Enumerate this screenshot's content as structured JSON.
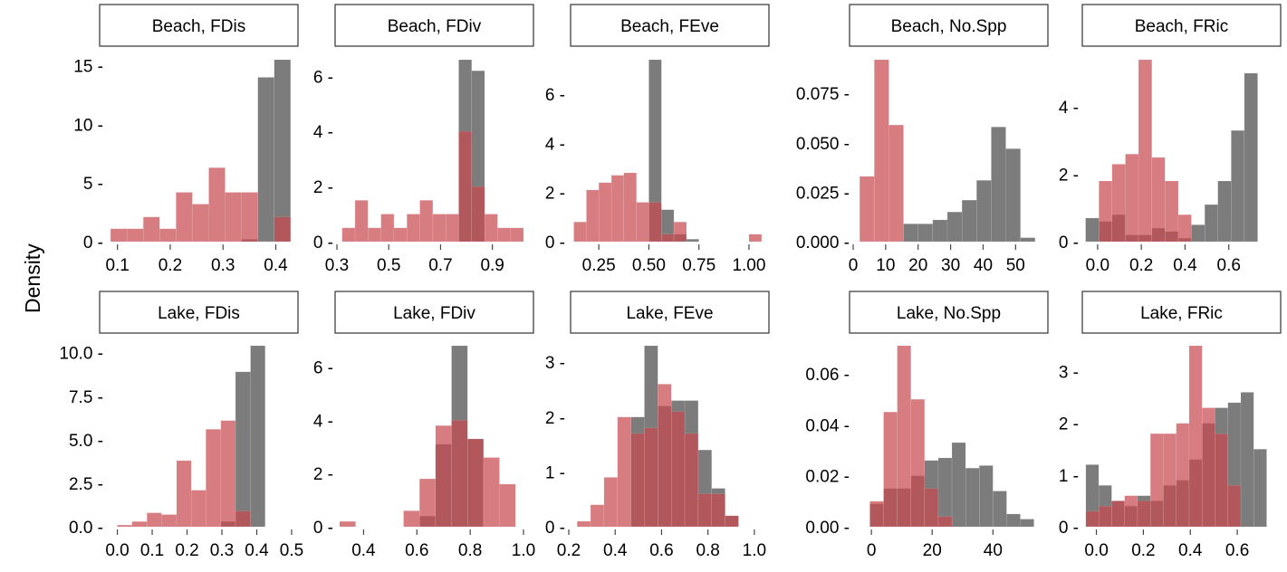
{
  "figure": {
    "ylabel": "Density",
    "colors": {
      "grey": "#6e6e6e",
      "red": "#c8494f",
      "overlap_note_only_visual": ""
    }
  },
  "chart_data": [
    {
      "type": "bar",
      "title": "Beach, FDis",
      "xlabel": "",
      "ylabel": "Density",
      "xlim": [
        0.08,
        0.43
      ],
      "ylim": [
        0,
        15.5
      ],
      "xticks": [
        0.1,
        0.2,
        0.3,
        0.4
      ],
      "xticklabels": [
        "0.1",
        "0.2",
        "0.3",
        "0.4"
      ],
      "yticks": [
        0,
        5,
        10,
        15
      ],
      "yticklabels": [
        "0 -",
        "5 -",
        "10 -",
        "15 -"
      ],
      "bin_edges": [
        0.087,
        0.118,
        0.149,
        0.18,
        0.211,
        0.242,
        0.273,
        0.304,
        0.335,
        0.366,
        0.397,
        0.428
      ],
      "series": [
        {
          "color": "#6e6e6e",
          "values": [
            0,
            0,
            0,
            0,
            0,
            0,
            0,
            0,
            0.2,
            14,
            15.5
          ]
        },
        {
          "color": "#c8494f",
          "values": [
            1.1,
            1.1,
            2.1,
            1.1,
            4.2,
            3.2,
            6.3,
            4.2,
            4.2,
            0,
            2.1
          ]
        }
      ]
    },
    {
      "type": "bar",
      "title": "Beach, FDiv",
      "xlabel": "",
      "ylabel": "Density",
      "xlim": [
        0.3,
        1.02
      ],
      "ylim": [
        0,
        6.6
      ],
      "xticks": [
        0.3,
        0.5,
        0.7,
        0.9
      ],
      "xticklabels": [
        "0.3",
        "0.5",
        "0.7",
        "0.9"
      ],
      "yticks": [
        0,
        2,
        4,
        6
      ],
      "yticklabels": [
        "0 -",
        "2 -",
        "4 -",
        "6 -"
      ],
      "bin_edges": [
        0.32,
        0.37,
        0.42,
        0.47,
        0.52,
        0.57,
        0.62,
        0.67,
        0.72,
        0.77,
        0.82,
        0.87,
        0.92,
        0.97,
        1.02
      ],
      "series": [
        {
          "color": "#6e6e6e",
          "values": [
            0,
            0,
            0,
            0,
            0,
            0,
            0,
            0,
            0,
            6.6,
            6.2,
            0,
            0,
            0
          ]
        },
        {
          "color": "#c8494f",
          "values": [
            0.5,
            1.5,
            0.5,
            1.0,
            0.5,
            1.0,
            1.5,
            1.0,
            1.0,
            4.0,
            2.0,
            1.0,
            0.5,
            0.5
          ]
        }
      ]
    },
    {
      "type": "bar",
      "title": "Beach, FEve",
      "xlabel": "",
      "ylabel": "Density",
      "xlim": [
        0.1,
        1.05
      ],
      "ylim": [
        0,
        7.4
      ],
      "xticks": [
        0.25,
        0.5,
        0.75,
        1.0
      ],
      "xticklabels": [
        "0.25",
        "0.50",
        "0.75",
        "1.00"
      ],
      "yticks": [
        0,
        2,
        4,
        6
      ],
      "yticklabels": [
        "0 -",
        "2 -",
        "4 -",
        "6 -"
      ],
      "bin_edges": [
        0.125,
        0.188,
        0.25,
        0.313,
        0.375,
        0.438,
        0.5,
        0.563,
        0.625,
        0.688,
        0.75,
        0.813,
        0.875,
        0.938,
        1.0,
        1.063
      ],
      "series": [
        {
          "color": "#6e6e6e",
          "values": [
            0,
            0,
            0,
            0,
            0,
            0,
            7.4,
            1.3,
            0.3,
            0.1,
            0,
            0,
            0,
            0,
            0
          ]
        },
        {
          "color": "#c8494f",
          "values": [
            0.8,
            2.1,
            2.4,
            2.7,
            2.8,
            1.6,
            1.6,
            0.3,
            0.8,
            0,
            0,
            0,
            0,
            0,
            0.3
          ]
        }
      ]
    },
    {
      "type": "bar",
      "title": "Beach, No.Spp",
      "xlabel": "",
      "ylabel": "Density",
      "xlim": [
        0,
        58
      ],
      "ylim": [
        0,
        0.092
      ],
      "xticks": [
        0,
        10,
        20,
        30,
        40,
        50
      ],
      "xticklabels": [
        "0",
        "10",
        "20",
        "30",
        "40",
        "50"
      ],
      "yticks": [
        0,
        0.025,
        0.05,
        0.075
      ],
      "yticklabels": [
        "0.000 -",
        "0.025 -",
        "0.050 -",
        "0.075 -"
      ],
      "bin_edges": [
        2,
        6.5,
        11,
        15.5,
        20,
        24.5,
        29,
        33.5,
        38,
        42.5,
        47,
        51.5,
        56
      ],
      "series": [
        {
          "color": "#6e6e6e",
          "values": [
            0,
            0,
            0,
            0.009,
            0.009,
            0.011,
            0.015,
            0.021,
            0.031,
            0.058,
            0.047,
            0.002
          ]
        },
        {
          "color": "#c8494f",
          "values": [
            0.033,
            0.092,
            0.059,
            0,
            0,
            0,
            0,
            0,
            0,
            0,
            0,
            0
          ]
        }
      ]
    },
    {
      "type": "bar",
      "title": "Beach, FRic",
      "xlabel": "",
      "ylabel": "Density",
      "xlim": [
        -0.07,
        0.8
      ],
      "ylim": [
        0,
        5.4
      ],
      "xticks": [
        0.0,
        0.2,
        0.4,
        0.6
      ],
      "xticklabels": [
        "0.0",
        "0.2",
        "0.4",
        "0.6"
      ],
      "yticks": [
        0,
        2,
        4
      ],
      "yticklabels": [
        "0 -",
        "2 -",
        "4 -"
      ],
      "bin_edges": [
        -0.055,
        0.006,
        0.066,
        0.127,
        0.187,
        0.248,
        0.308,
        0.369,
        0.429,
        0.49,
        0.55,
        0.611,
        0.671,
        0.732
      ],
      "series": [
        {
          "color": "#6e6e6e",
          "values": [
            0.7,
            0.6,
            0.8,
            0.2,
            0.2,
            0.4,
            0.3,
            0.1,
            0.5,
            1.1,
            1.8,
            3.3,
            5.0
          ]
        },
        {
          "color": "#c8494f",
          "values": [
            0,
            1.8,
            2.3,
            2.6,
            5.4,
            2.5,
            1.8,
            0.8,
            0,
            0,
            0,
            0,
            0
          ]
        }
      ]
    },
    {
      "type": "bar",
      "title": "Lake, FDis",
      "xlabel": "",
      "ylabel": "Density",
      "xlim": [
        -0.03,
        0.5
      ],
      "ylim": [
        0,
        10.4
      ],
      "xticks": [
        0.0,
        0.1,
        0.2,
        0.3,
        0.4,
        0.5
      ],
      "xticklabels": [
        "0.0",
        "0.1",
        "0.2",
        "0.3",
        "0.4",
        "0.5"
      ],
      "yticks": [
        0,
        2.5,
        5,
        7.5,
        10
      ],
      "yticklabels": [
        "0.0 -",
        "2.5 -",
        "5.0 -",
        "7.5 -",
        "10.0 -"
      ],
      "bin_edges": [
        0.0,
        0.042,
        0.085,
        0.127,
        0.17,
        0.212,
        0.254,
        0.297,
        0.339,
        0.382,
        0.424,
        0.466
      ],
      "series": [
        {
          "color": "#6e6e6e",
          "values": [
            0,
            0,
            0,
            0,
            0,
            0,
            0,
            0.3,
            8.9,
            10.4,
            0
          ]
        },
        {
          "color": "#c8494f",
          "values": [
            0.1,
            0.3,
            0.8,
            0.7,
            3.8,
            2.1,
            5.6,
            6.1,
            0.9,
            0,
            0
          ]
        }
      ]
    },
    {
      "type": "bar",
      "title": "Lake, FDiv",
      "xlabel": "",
      "ylabel": "Density",
      "xlim": [
        0.3,
        1.0
      ],
      "ylim": [
        0,
        6.8
      ],
      "xticks": [
        0.4,
        0.6,
        0.8,
        1.0
      ],
      "xticklabels": [
        "0.4",
        "0.6",
        "0.8",
        "1.0"
      ],
      "yticks": [
        0,
        2,
        4,
        6
      ],
      "yticklabels": [
        "0 -",
        "2 -",
        "4 -",
        "6 -"
      ],
      "bin_edges": [
        0.31,
        0.37,
        0.43,
        0.49,
        0.55,
        0.61,
        0.67,
        0.73,
        0.79,
        0.85,
        0.91,
        0.97
      ],
      "series": [
        {
          "color": "#6e6e6e",
          "values": [
            0,
            0,
            0,
            0,
            0,
            0.4,
            3.1,
            6.8,
            3.3,
            0,
            0
          ]
        },
        {
          "color": "#c8494f",
          "values": [
            0.2,
            0,
            0,
            0,
            0.6,
            1.8,
            3.8,
            4.0,
            3.3,
            2.6,
            1.6
          ]
        }
      ]
    },
    {
      "type": "bar",
      "title": "Lake, FEve",
      "xlabel": "",
      "ylabel": "Density",
      "xlim": [
        0.2,
        1.02
      ],
      "ylim": [
        0,
        3.3
      ],
      "xticks": [
        0.2,
        0.4,
        0.6,
        0.8,
        1.0
      ],
      "xticklabels": [
        "0.2",
        "0.4",
        "0.6",
        "0.8",
        "1.0"
      ],
      "yticks": [
        0,
        1,
        2,
        3
      ],
      "yticklabels": [
        "0 -",
        "1 -",
        "2 -",
        "3 -"
      ],
      "bin_edges": [
        0.236,
        0.294,
        0.352,
        0.41,
        0.468,
        0.526,
        0.584,
        0.642,
        0.7,
        0.758,
        0.816,
        0.874,
        0.932,
        0.99
      ],
      "series": [
        {
          "color": "#6e6e6e",
          "values": [
            0,
            0,
            0,
            0,
            2.0,
            3.3,
            2.2,
            2.3,
            2.3,
            1.4,
            0.7,
            0.2,
            0
          ]
        },
        {
          "color": "#c8494f",
          "values": [
            0.1,
            0.4,
            0.9,
            2.0,
            1.7,
            1.8,
            2.6,
            2.1,
            1.7,
            0.6,
            0.6,
            0.2,
            0
          ]
        }
      ]
    },
    {
      "type": "bar",
      "title": "Lake, No.Spp",
      "xlabel": "",
      "ylabel": "Density",
      "xlim": [
        -6,
        56
      ],
      "ylim": [
        0,
        0.071
      ],
      "xticks": [
        0,
        20,
        40
      ],
      "xticklabels": [
        "0",
        "20",
        "40"
      ],
      "yticks": [
        0,
        0.02,
        0.04,
        0.06
      ],
      "yticklabels": [
        "0.00 -",
        "0.02 -",
        "0.04 -",
        "0.06 -"
      ],
      "bin_edges": [
        -5,
        -0.5,
        4,
        8.5,
        13,
        17.5,
        22,
        26.5,
        31,
        35.5,
        40,
        44.5,
        49,
        53.5
      ],
      "series": [
        {
          "color": "#6e6e6e",
          "values": [
            0,
            0.009,
            0.015,
            0.015,
            0.02,
            0.026,
            0.027,
            0.033,
            0.023,
            0.024,
            0.014,
            0.005,
            0.003
          ]
        },
        {
          "color": "#c8494f",
          "values": [
            0,
            0.01,
            0.045,
            0.071,
            0.05,
            0.015,
            0.004,
            0,
            0,
            0,
            0,
            0,
            0
          ]
        }
      ]
    },
    {
      "type": "bar",
      "title": "Lake, FRic",
      "xlabel": "",
      "ylabel": "Density",
      "xlim": [
        -0.06,
        0.75
      ],
      "ylim": [
        0,
        3.5
      ],
      "xticks": [
        0.0,
        0.2,
        0.4,
        0.6
      ],
      "xticklabels": [
        "0.0",
        "0.2",
        "0.4",
        "0.6"
      ],
      "yticks": [
        0,
        1,
        2,
        3
      ],
      "yticklabels": [
        "0 -",
        "1 -",
        "2 -",
        "3 -"
      ],
      "bin_edges": [
        -0.045,
        0.01,
        0.065,
        0.12,
        0.175,
        0.23,
        0.285,
        0.34,
        0.395,
        0.45,
        0.505,
        0.56,
        0.615,
        0.67,
        0.725
      ],
      "series": [
        {
          "color": "#6e6e6e",
          "values": [
            1.2,
            0.8,
            0.5,
            0.4,
            0.6,
            0.5,
            0.8,
            0.9,
            1.3,
            2.0,
            2.3,
            2.4,
            2.6,
            1.5
          ]
        },
        {
          "color": "#c8494f",
          "values": [
            0.3,
            0.4,
            0.5,
            0.6,
            0.5,
            1.8,
            1.8,
            2.0,
            3.5,
            2.3,
            1.8,
            0.8,
            0,
            0
          ]
        }
      ]
    }
  ]
}
